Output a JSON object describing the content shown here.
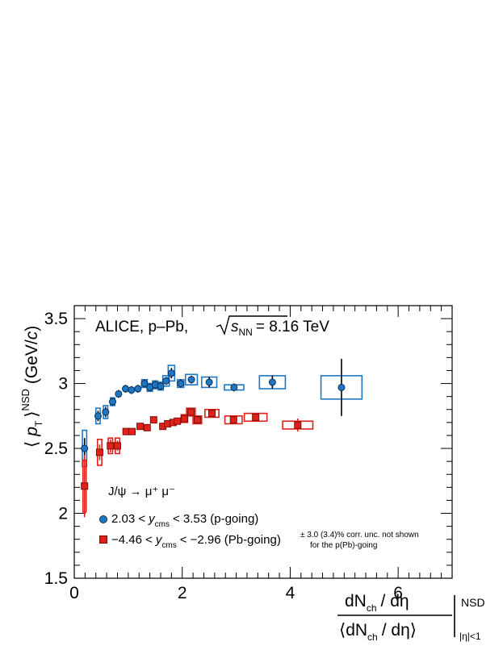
{
  "chart_data": {
    "type": "scatter",
    "experiment_label": "ALICE, p–Pb,",
    "energy_label_s": "s",
    "energy_label_sub": "NN",
    "energy_label_value": "= 8.16 TeV",
    "ylabel": {
      "open": "⟨",
      "p": "p",
      "sub": "T",
      "close": "⟩",
      "sup": "NSD",
      "unit_open": "(GeV/",
      "unit_c": "c",
      "unit_close": ")"
    },
    "xlabel": {
      "num": "dN",
      "num_sub": "ch",
      "num_rest": "/ dη",
      "den_open": "⟨dN",
      "den_sub": "ch",
      "den_rest": "/ dη⟩",
      "sup": "NSD",
      "sub": "|η|<1"
    },
    "xlim": [
      0,
      7
    ],
    "ylim": [
      1.5,
      3.6
    ],
    "x_ticks": [
      "0",
      "2",
      "4",
      "6"
    ],
    "y_ticks": [
      "1.5",
      "2",
      "2.5",
      "3",
      "3.5"
    ],
    "legend_title": "J/ψ → μ⁺ μ⁻",
    "note_line1": "± 3.0 (3.4)% corr. unc. not shown",
    "note_line2": "for the p(Pb)-going",
    "series": [
      {
        "name_pre": "2.03 <",
        "name_var": "y",
        "name_sub": "cms",
        "name_post": "< 3.53 (p-going)",
        "color": "#1f77c4",
        "marker": "circle",
        "points": [
          {
            "x": 0.19,
            "y": 2.5,
            "stat": 0.08,
            "sx": 0.04,
            "sys": 0.14
          },
          {
            "x": 0.44,
            "y": 2.75,
            "stat": 0.04,
            "sx": 0.04,
            "sys": 0.06
          },
          {
            "x": 0.58,
            "y": 2.78,
            "stat": 0.04,
            "sx": 0.04,
            "sys": 0.05
          },
          {
            "x": 0.71,
            "y": 2.86,
            "stat": 0.03,
            "sx": 0.04,
            "sys": 0.03
          },
          {
            "x": 0.82,
            "y": 2.92,
            "stat": 0.03,
            "sx": 0.03,
            "sys": 0.02
          },
          {
            "x": 0.95,
            "y": 2.96,
            "stat": 0.03,
            "sx": 0.03,
            "sys": 0.02
          },
          {
            "x": 1.06,
            "y": 2.95,
            "stat": 0.03,
            "sx": 0.03,
            "sys": 0.02
          },
          {
            "x": 1.18,
            "y": 2.96,
            "stat": 0.03,
            "sx": 0.03,
            "sys": 0.02
          },
          {
            "x": 1.3,
            "y": 3.0,
            "stat": 0.03,
            "sx": 0.05,
            "sys": 0.03
          },
          {
            "x": 1.4,
            "y": 2.97,
            "stat": 0.03,
            "sx": 0.05,
            "sys": 0.03
          },
          {
            "x": 1.5,
            "y": 2.99,
            "stat": 0.03,
            "sx": 0.05,
            "sys": 0.03
          },
          {
            "x": 1.6,
            "y": 2.98,
            "stat": 0.03,
            "sx": 0.05,
            "sys": 0.03
          },
          {
            "x": 1.7,
            "y": 3.02,
            "stat": 0.03,
            "sx": 0.06,
            "sys": 0.04
          },
          {
            "x": 1.8,
            "y": 3.08,
            "stat": 0.04,
            "sx": 0.06,
            "sys": 0.06
          },
          {
            "x": 1.97,
            "y": 3.0,
            "stat": 0.03,
            "sx": 0.06,
            "sys": 0.03
          },
          {
            "x": 2.17,
            "y": 3.03,
            "stat": 0.03,
            "sx": 0.11,
            "sys": 0.04
          },
          {
            "x": 2.5,
            "y": 3.01,
            "stat": 0.04,
            "sx": 0.14,
            "sys": 0.04
          },
          {
            "x": 2.96,
            "y": 2.97,
            "stat": 0.03,
            "sx": 0.18,
            "sys": 0.02
          },
          {
            "x": 3.67,
            "y": 3.01,
            "stat": 0.05,
            "sx": 0.24,
            "sys": 0.05
          },
          {
            "x": 4.95,
            "y": 2.97,
            "stat": 0.22,
            "sx": 0.38,
            "sys": 0.09
          }
        ]
      },
      {
        "name_pre": "−4.46 <",
        "name_var": "y",
        "name_sub": "cms",
        "name_post": "< −2.96 (Pb-going)",
        "color": "#e0211a",
        "marker": "square",
        "points": [
          {
            "x": 0.19,
            "y": 2.21,
            "stat": 0.24,
            "sx": 0.03,
            "sys": 0.2
          },
          {
            "x": 0.47,
            "y": 2.47,
            "stat": 0.06,
            "sx": 0.04,
            "sys": 0.1
          },
          {
            "x": 0.67,
            "y": 2.52,
            "stat": 0.05,
            "sx": 0.04,
            "sys": 0.06
          },
          {
            "x": 0.8,
            "y": 2.52,
            "stat": 0.04,
            "sx": 0.04,
            "sys": 0.06
          },
          {
            "x": 0.96,
            "y": 2.63,
            "stat": 0.02,
            "sx": 0.03,
            "sys": 0.02
          },
          {
            "x": 1.07,
            "y": 2.63,
            "stat": 0.02,
            "sx": 0.03,
            "sys": 0.02
          },
          {
            "x": 1.22,
            "y": 2.67,
            "stat": 0.02,
            "sx": 0.04,
            "sys": 0.02
          },
          {
            "x": 1.35,
            "y": 2.66,
            "stat": 0.02,
            "sx": 0.04,
            "sys": 0.02
          },
          {
            "x": 1.47,
            "y": 2.72,
            "stat": 0.02,
            "sx": 0.05,
            "sys": 0.02
          },
          {
            "x": 1.64,
            "y": 2.67,
            "stat": 0.02,
            "sx": 0.04,
            "sys": 0.02
          },
          {
            "x": 1.73,
            "y": 2.69,
            "stat": 0.02,
            "sx": 0.04,
            "sys": 0.02
          },
          {
            "x": 1.83,
            "y": 2.7,
            "stat": 0.02,
            "sx": 0.04,
            "sys": 0.02
          },
          {
            "x": 1.91,
            "y": 2.71,
            "stat": 0.02,
            "sx": 0.04,
            "sys": 0.02
          },
          {
            "x": 2.04,
            "y": 2.73,
            "stat": 0.02,
            "sx": 0.06,
            "sys": 0.03
          },
          {
            "x": 2.16,
            "y": 2.78,
            "stat": 0.03,
            "sx": 0.08,
            "sys": 0.03
          },
          {
            "x": 2.28,
            "y": 2.72,
            "stat": 0.02,
            "sx": 0.08,
            "sys": 0.03
          },
          {
            "x": 2.55,
            "y": 2.77,
            "stat": 0.03,
            "sx": 0.13,
            "sys": 0.03
          },
          {
            "x": 2.95,
            "y": 2.72,
            "stat": 0.03,
            "sx": 0.16,
            "sys": 0.03
          },
          {
            "x": 3.36,
            "y": 2.74,
            "stat": 0.03,
            "sx": 0.21,
            "sys": 0.03
          },
          {
            "x": 4.14,
            "y": 2.68,
            "stat": 0.05,
            "sx": 0.28,
            "sys": 0.03
          }
        ]
      }
    ]
  }
}
